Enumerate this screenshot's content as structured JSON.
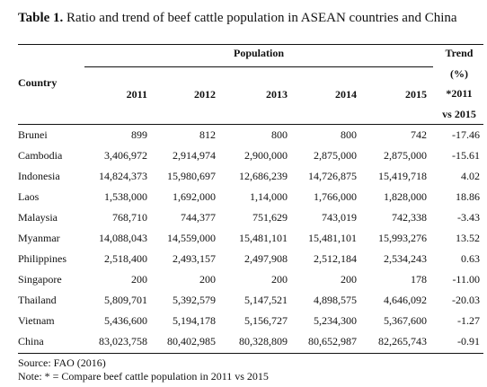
{
  "caption": {
    "label": "Table 1.",
    "text": "Ratio and trend of beef cattle population in ASEAN countries and China"
  },
  "header": {
    "country": "Country",
    "population": "Population",
    "years": [
      "2011",
      "2012",
      "2013",
      "2014",
      "2015"
    ],
    "trend_lines": [
      "Trend",
      "(%)",
      "*2011",
      "vs 2015"
    ]
  },
  "rows": [
    {
      "country": "Brunei",
      "values": [
        "899",
        "812",
        "800",
        "800",
        "742"
      ],
      "trend": "-17.46"
    },
    {
      "country": "Cambodia",
      "values": [
        "3,406,972",
        "2,914,974",
        "2,900,000",
        "2,875,000",
        "2,875,000"
      ],
      "trend": "-15.61"
    },
    {
      "country": "Indonesia",
      "values": [
        "14,824,373",
        "15,980,697",
        "12,686,239",
        "14,726,875",
        "15,419,718"
      ],
      "trend": "4.02"
    },
    {
      "country": "Laos",
      "values": [
        "1,538,000",
        "1,692,000",
        "1,14,000",
        "1,766,000",
        "1,828,000"
      ],
      "trend": "18.86"
    },
    {
      "country": "Malaysia",
      "values": [
        "768,710",
        "744,377",
        "751,629",
        "743,019",
        "742,338"
      ],
      "trend": "-3.43"
    },
    {
      "country": "Myanmar",
      "values": [
        "14,088,043",
        "14,559,000",
        "15,481,101",
        "15,481,101",
        "15,993,276"
      ],
      "trend": "13.52"
    },
    {
      "country": "Philippines",
      "values": [
        "2,518,400",
        "2,493,157",
        "2,497,908",
        "2,512,184",
        "2,534,243"
      ],
      "trend": "0.63"
    },
    {
      "country": "Singapore",
      "values": [
        "200",
        "200",
        "200",
        "200",
        "178"
      ],
      "trend": "-11.00"
    },
    {
      "country": "Thailand",
      "values": [
        "5,809,701",
        "5,392,579",
        "5,147,521",
        "4,898,575",
        "4,646,092"
      ],
      "trend": "-20.03"
    },
    {
      "country": "Vietnam",
      "values": [
        "5,436,600",
        "5,194,178",
        "5,156,727",
        "5,234,300",
        "5,367,600"
      ],
      "trend": "-1.27"
    },
    {
      "country": "China",
      "values": [
        "83,023,758",
        "80,402,985",
        "80,328,809",
        "80,652,987",
        "82,265,743"
      ],
      "trend": "-0.91"
    }
  ],
  "footer": {
    "source": "Source: FAO (2016)",
    "note": "Note: * = Compare beef cattle population in 2011 vs 2015"
  }
}
